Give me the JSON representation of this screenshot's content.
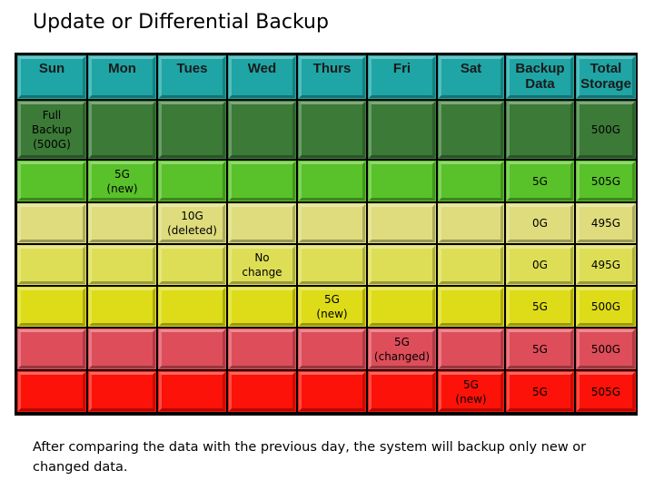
{
  "title": "Update or Differential Backup",
  "colors": {
    "header": "#1fa5a5",
    "row_dark_green": "#3b7a37",
    "row_green": "#59c12a",
    "row_pale_yellow": "#dedc7c",
    "row_yellow_light": "#dede56",
    "row_yellow": "#dedc18",
    "row_pink_red": "#de4e5a",
    "row_red": "#fc1208"
  },
  "table": {
    "headers": [
      "Sun",
      "Mon",
      "Tues",
      "Wed",
      "Thurs",
      "Fri",
      "Sat",
      "Backup\nData",
      "Total\nStorage"
    ],
    "rows": [
      {
        "color": "row_dark_green",
        "cells": [
          "Full\nBackup\n(500G)",
          "",
          "",
          "",
          "",
          "",
          "",
          "",
          "500G"
        ]
      },
      {
        "color": "row_green",
        "cells": [
          "",
          "5G\n(new)",
          "",
          "",
          "",
          "",
          "",
          "5G",
          "505G"
        ]
      },
      {
        "color": "row_pale_yellow",
        "cells": [
          "",
          "",
          "10G\n(deleted)",
          "",
          "",
          "",
          "",
          "0G",
          "495G"
        ]
      },
      {
        "color": "row_yellow_light",
        "cells": [
          "",
          "",
          "",
          "No\nchange",
          "",
          "",
          "",
          "0G",
          "495G"
        ]
      },
      {
        "color": "row_yellow",
        "cells": [
          "",
          "",
          "",
          "",
          "5G\n(new)",
          "",
          "",
          "5G",
          "500G"
        ]
      },
      {
        "color": "row_pink_red",
        "cells": [
          "",
          "",
          "",
          "",
          "",
          "5G\n(changed)",
          "",
          "5G",
          "500G"
        ]
      },
      {
        "color": "row_red",
        "cells": [
          "",
          "",
          "",
          "",
          "",
          "",
          "5G\n(new)",
          "5G",
          "505G"
        ]
      }
    ]
  },
  "caption": "After comparing the data with the previous day, the system will backup only new or changed data."
}
